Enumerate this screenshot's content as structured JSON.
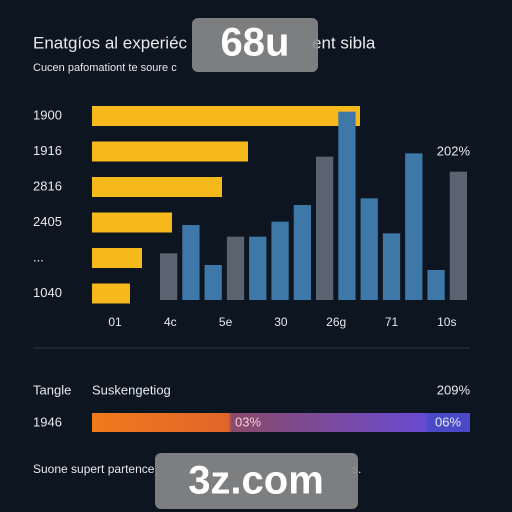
{
  "header": {
    "title": "Enatgíos al experiéc",
    "title_end": "ent sibla",
    "subtitle": "Cucen pafomationt te soure c"
  },
  "watermarks": [
    "68u",
    "3z.com"
  ],
  "bars": {
    "type": "bar",
    "orientation": "horizontal",
    "categories": [
      "1900",
      "1916",
      "2816",
      "2405",
      "...",
      "1040"
    ],
    "values": [
      268,
      156,
      130,
      80,
      50,
      38
    ],
    "xlim": [
      0,
      380
    ],
    "color": "#f5b91c",
    "annotation": "202%"
  },
  "columns": {
    "type": "bar",
    "categories": [
      "01",
      "4c",
      "5e",
      "30",
      "26g",
      "71",
      "10s"
    ],
    "values": [
      28,
      45,
      21,
      38,
      38,
      47,
      57,
      86,
      113,
      61,
      40,
      88,
      18,
      77
    ],
    "colors": [
      "#5a6470",
      "#3d78a8",
      "#3d78a8",
      "#5a6470",
      "#3d78a8",
      "#3d78a8",
      "#3d78a8",
      "#5a6470",
      "#3d78a8",
      "#3d78a8",
      "#3d78a8",
      "#3d78a8",
      "#3d78a8",
      "#5a6470"
    ],
    "ylim": [
      0,
      120
    ]
  },
  "progress": {
    "label": "Tangle",
    "name": "Suskengetiog",
    "total": "209%",
    "row_label": "1946",
    "left": "03%",
    "right": "06%"
  },
  "footer": "Suone supert partence",
  "footer_end": "s."
}
